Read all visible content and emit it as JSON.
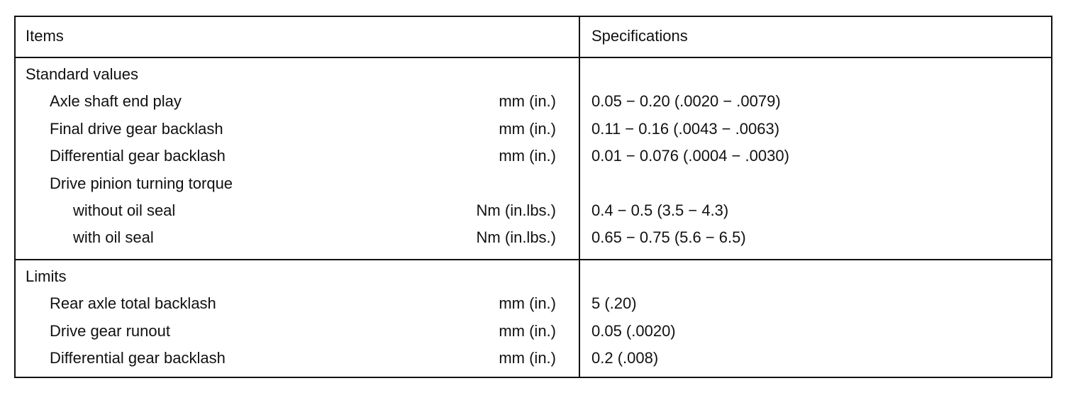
{
  "table": {
    "header": [
      "Items",
      "Specifications"
    ],
    "sections": [
      {
        "title": "Standard values",
        "rows": [
          {
            "item": "Axle shaft end play",
            "unit": "mm (in.)",
            "spec": "0.05 − 0.20 (.0020 − .0079)"
          },
          {
            "item": "Final drive gear backlash",
            "unit": "mm (in.)",
            "spec": "0.11 − 0.16 (.0043 − .0063)"
          },
          {
            "item": "Differential gear backlash",
            "unit": "mm (in.)",
            "spec": "0.01 − 0.076 (.0004 − .0030)"
          },
          {
            "item": "Drive pinion turning torque",
            "rows": [
              {
                "item": "without oil seal",
                "unit": "Nm (in.lbs.)",
                "spec": "0.4 − 0.5 (3.5 − 4.3)"
              },
              {
                "item": "with oil seal",
                "unit": "Nm (in.lbs.)",
                "spec": "0.65 − 0.75 (5.6 − 6.5)"
              }
            ]
          }
        ]
      },
      {
        "title": "Limits",
        "rows": [
          {
            "item": "Rear axle total backlash",
            "unit": "mm (in.)",
            "spec": "5 (.20)"
          },
          {
            "item": "Drive gear runout",
            "unit": "mm (in.)",
            "spec": "0.05 (.0020)"
          },
          {
            "item": "Differential gear backlash",
            "unit": "mm (in.)",
            "spec": "0.2 (.008)"
          }
        ]
      }
    ]
  }
}
